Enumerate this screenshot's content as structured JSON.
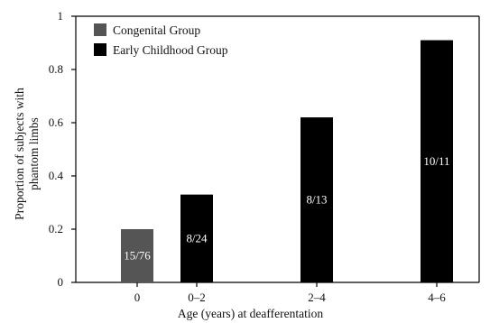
{
  "chart_data": {
    "type": "bar",
    "title": "",
    "xlabel": "Age (years) at deafferentation",
    "ylabel": "Proportion of subjects with phantom limbs",
    "ylabel_lines": [
      "Proportion of subjects with",
      "phantom limbs"
    ],
    "ylim": [
      0,
      1
    ],
    "yticks": [
      0,
      0.2,
      0.4,
      0.6,
      0.8,
      1
    ],
    "ytick_labels": [
      "0",
      "0.2",
      "0.4",
      "0.6",
      "0.8",
      "1"
    ],
    "categories": [
      "0",
      "0–2",
      "2–4",
      "4–6"
    ],
    "grid": false,
    "legend_position": "top-left",
    "series": [
      {
        "name": "Congenital Group",
        "color": "#555555",
        "points": [
          {
            "category": "0",
            "value": 0.2,
            "label": "15/76"
          }
        ]
      },
      {
        "name": "Early Childhood Group",
        "color": "#000000",
        "points": [
          {
            "category": "0–2",
            "value": 0.33,
            "label": "8/24"
          },
          {
            "category": "2–4",
            "value": 0.62,
            "label": "8/13"
          },
          {
            "category": "4–6",
            "value": 0.91,
            "label": "10/11"
          }
        ]
      }
    ]
  }
}
